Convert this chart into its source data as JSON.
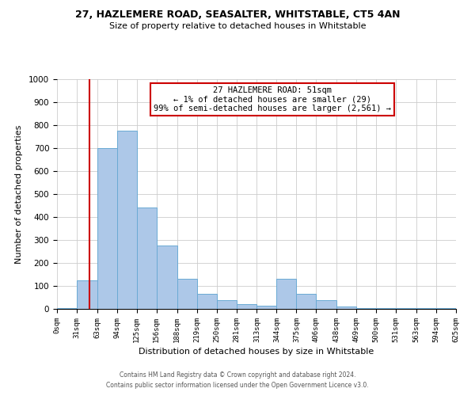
{
  "title_line1": "27, HAZLEMERE ROAD, SEASALTER, WHITSTABLE, CT5 4AN",
  "title_line2": "Size of property relative to detached houses in Whitstable",
  "xlabel": "Distribution of detached houses by size in Whitstable",
  "ylabel": "Number of detached properties",
  "footer_line1": "Contains HM Land Registry data © Crown copyright and database right 2024.",
  "footer_line2": "Contains public sector information licensed under the Open Government Licence v3.0.",
  "annotation_title": "27 HAZLEMERE ROAD: 51sqm",
  "annotation_line1": "← 1% of detached houses are smaller (29)",
  "annotation_line2": "99% of semi-detached houses are larger (2,561) →",
  "bar_edges": [
    0,
    31,
    63,
    94,
    125,
    156,
    188,
    219,
    250,
    281,
    313,
    344,
    375,
    406,
    438,
    469,
    500,
    531,
    563,
    594,
    625
  ],
  "bar_heights": [
    5,
    125,
    700,
    775,
    440,
    275,
    130,
    65,
    38,
    20,
    15,
    130,
    65,
    38,
    10,
    5,
    5,
    5,
    5,
    5
  ],
  "bar_color": "#adc8e8",
  "bar_edgecolor": "#6aaad4",
  "property_line_x": 51,
  "ylim": [
    0,
    1000
  ],
  "yticks": [
    0,
    100,
    200,
    300,
    400,
    500,
    600,
    700,
    800,
    900,
    1000
  ],
  "xtick_labels": [
    "0sqm",
    "31sqm",
    "63sqm",
    "94sqm",
    "125sqm",
    "156sqm",
    "188sqm",
    "219sqm",
    "250sqm",
    "281sqm",
    "313sqm",
    "344sqm",
    "375sqm",
    "406sqm",
    "438sqm",
    "469sqm",
    "500sqm",
    "531sqm",
    "563sqm",
    "594sqm",
    "625sqm"
  ],
  "background_color": "#ffffff",
  "grid_color": "#cccccc",
  "annotation_box_edgecolor": "#cc0000",
  "property_line_color": "#cc0000",
  "fig_width": 6.0,
  "fig_height": 5.0,
  "fig_dpi": 100
}
